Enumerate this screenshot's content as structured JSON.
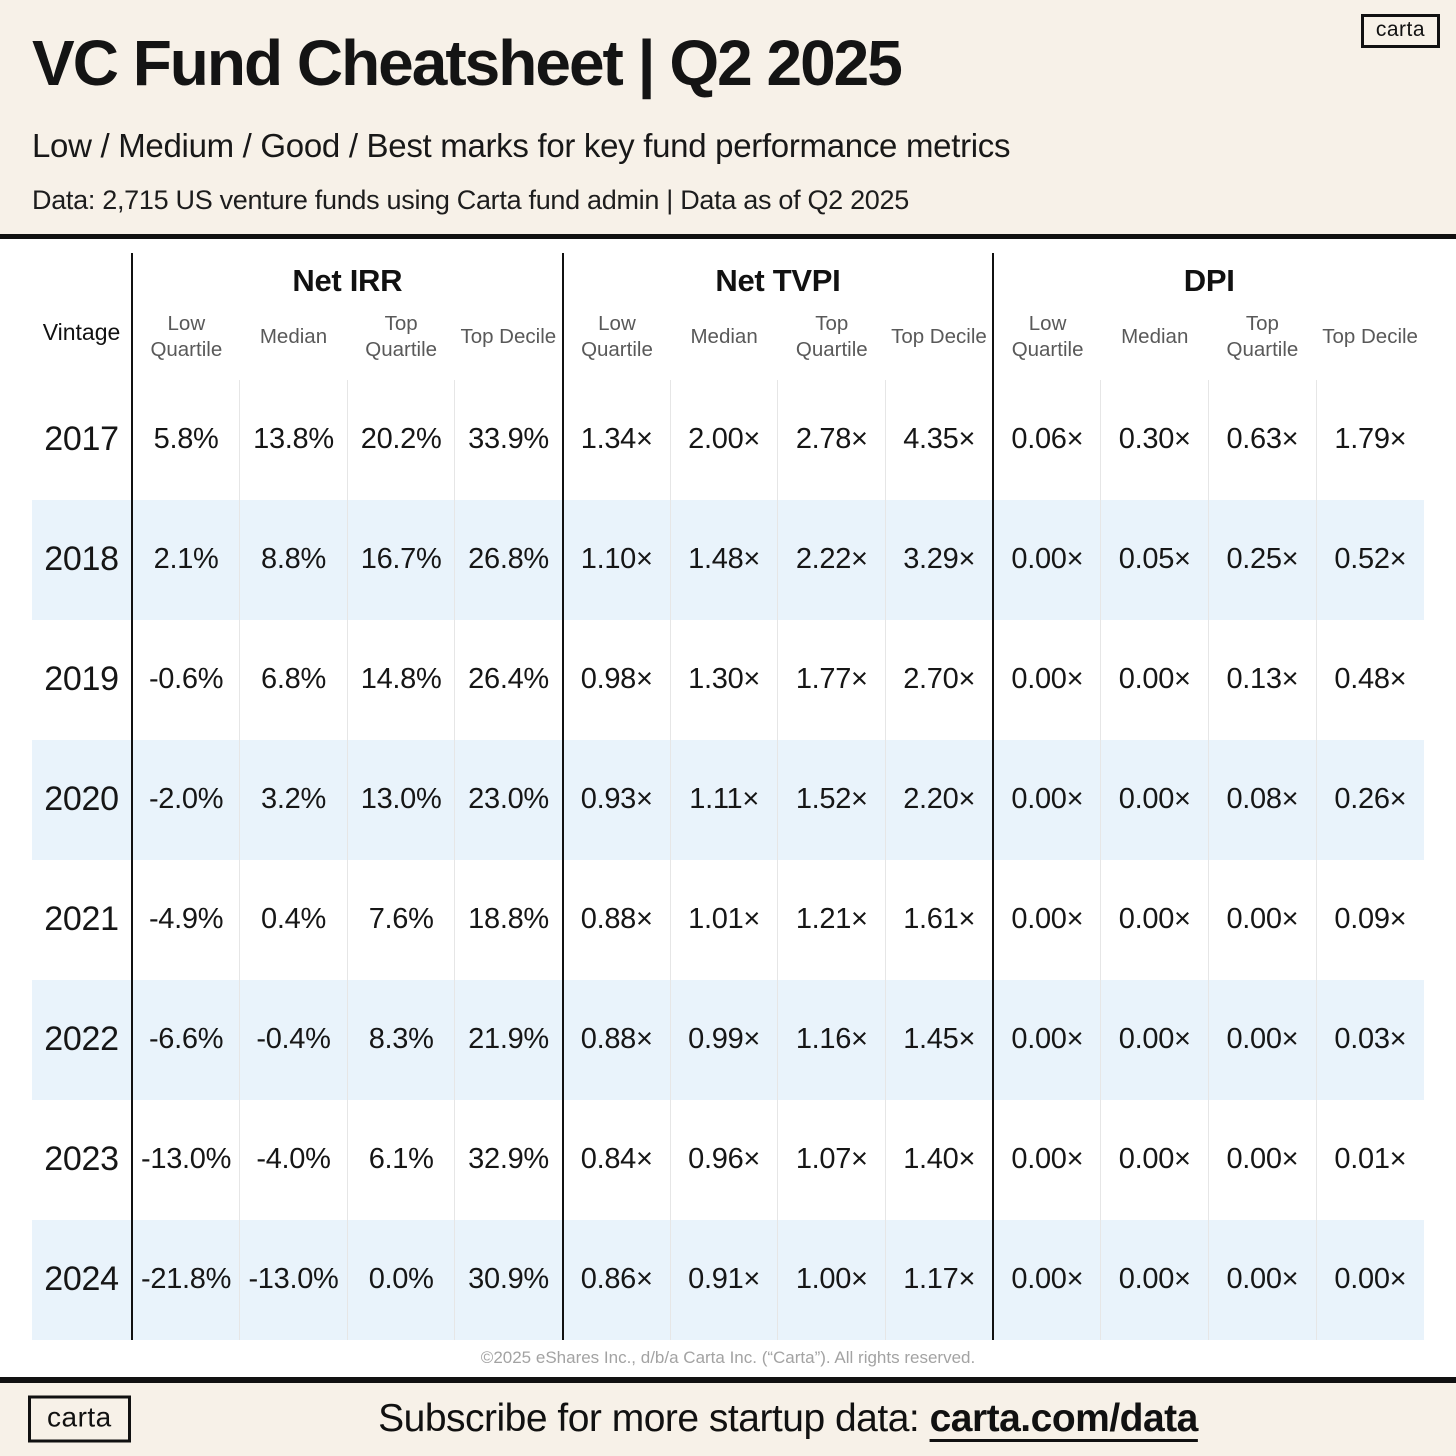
{
  "brand": "carta",
  "header": {
    "title": "VC Fund Cheatsheet | Q2 2025",
    "subtitle": "Low / Medium / Good / Best marks for key fund performance metrics",
    "data_note": "Data: 2,715 US venture funds using Carta fund admin | Data as of Q2 2025"
  },
  "chart_data": {
    "type": "table",
    "title": "VC Fund Cheatsheet | Q2 2025",
    "row_header": "Vintage",
    "column_groups": [
      "Net IRR",
      "Net TVPI",
      "DPI"
    ],
    "sub_columns": [
      "Low Quartile",
      "Median",
      "Top Quartile",
      "Top Decile"
    ],
    "rows": [
      {
        "vintage": "2017",
        "net_irr": [
          "5.8%",
          "13.8%",
          "20.2%",
          "33.9%"
        ],
        "net_tvpi": [
          "1.34×",
          "2.00×",
          "2.78×",
          "4.35×"
        ],
        "dpi": [
          "0.06×",
          "0.30×",
          "0.63×",
          "1.79×"
        ]
      },
      {
        "vintage": "2018",
        "net_irr": [
          "2.1%",
          "8.8%",
          "16.7%",
          "26.8%"
        ],
        "net_tvpi": [
          "1.10×",
          "1.48×",
          "2.22×",
          "3.29×"
        ],
        "dpi": [
          "0.00×",
          "0.05×",
          "0.25×",
          "0.52×"
        ]
      },
      {
        "vintage": "2019",
        "net_irr": [
          "-0.6%",
          "6.8%",
          "14.8%",
          "26.4%"
        ],
        "net_tvpi": [
          "0.98×",
          "1.30×",
          "1.77×",
          "2.70×"
        ],
        "dpi": [
          "0.00×",
          "0.00×",
          "0.13×",
          "0.48×"
        ]
      },
      {
        "vintage": "2020",
        "net_irr": [
          "-2.0%",
          "3.2%",
          "13.0%",
          "23.0%"
        ],
        "net_tvpi": [
          "0.93×",
          "1.11×",
          "1.52×",
          "2.20×"
        ],
        "dpi": [
          "0.00×",
          "0.00×",
          "0.08×",
          "0.26×"
        ]
      },
      {
        "vintage": "2021",
        "net_irr": [
          "-4.9%",
          "0.4%",
          "7.6%",
          "18.8%"
        ],
        "net_tvpi": [
          "0.88×",
          "1.01×",
          "1.21×",
          "1.61×"
        ],
        "dpi": [
          "0.00×",
          "0.00×",
          "0.00×",
          "0.09×"
        ]
      },
      {
        "vintage": "2022",
        "net_irr": [
          "-6.6%",
          "-0.4%",
          "8.3%",
          "21.9%"
        ],
        "net_tvpi": [
          "0.88×",
          "0.99×",
          "1.16×",
          "1.45×"
        ],
        "dpi": [
          "0.00×",
          "0.00×",
          "0.00×",
          "0.03×"
        ]
      },
      {
        "vintage": "2023",
        "net_irr": [
          "-13.0%",
          "-4.0%",
          "6.1%",
          "32.9%"
        ],
        "net_tvpi": [
          "0.84×",
          "0.96×",
          "1.07×",
          "1.40×"
        ],
        "dpi": [
          "0.00×",
          "0.00×",
          "0.00×",
          "0.01×"
        ]
      },
      {
        "vintage": "2024",
        "net_irr": [
          "-21.8%",
          "-13.0%",
          "0.0%",
          "30.9%"
        ],
        "net_tvpi": [
          "0.86×",
          "0.91×",
          "1.00×",
          "1.17×"
        ],
        "dpi": [
          "0.00×",
          "0.00×",
          "0.00×",
          "0.00×"
        ]
      }
    ],
    "layout_hints": {
      "stripe_rows": [
        "2018",
        "2020",
        "2022",
        "2024"
      ],
      "stripe_color": "#e9f3fb",
      "group_divider_color": "#111111",
      "sub_divider_color": "#e6e6e6"
    }
  },
  "footer": {
    "copyright": "©2025 eShares Inc., d/b/a Carta Inc. (“Carta”). All rights reserved.",
    "subscribe_prefix": "Subscribe for more startup data: ",
    "subscribe_link": "carta.com/data"
  },
  "colors": {
    "background_cream": "#f7f1e8",
    "table_background": "#ffffff",
    "text_black": "#141414",
    "subheader_gray": "#595959",
    "copyright_gray": "#a3a3a3"
  }
}
